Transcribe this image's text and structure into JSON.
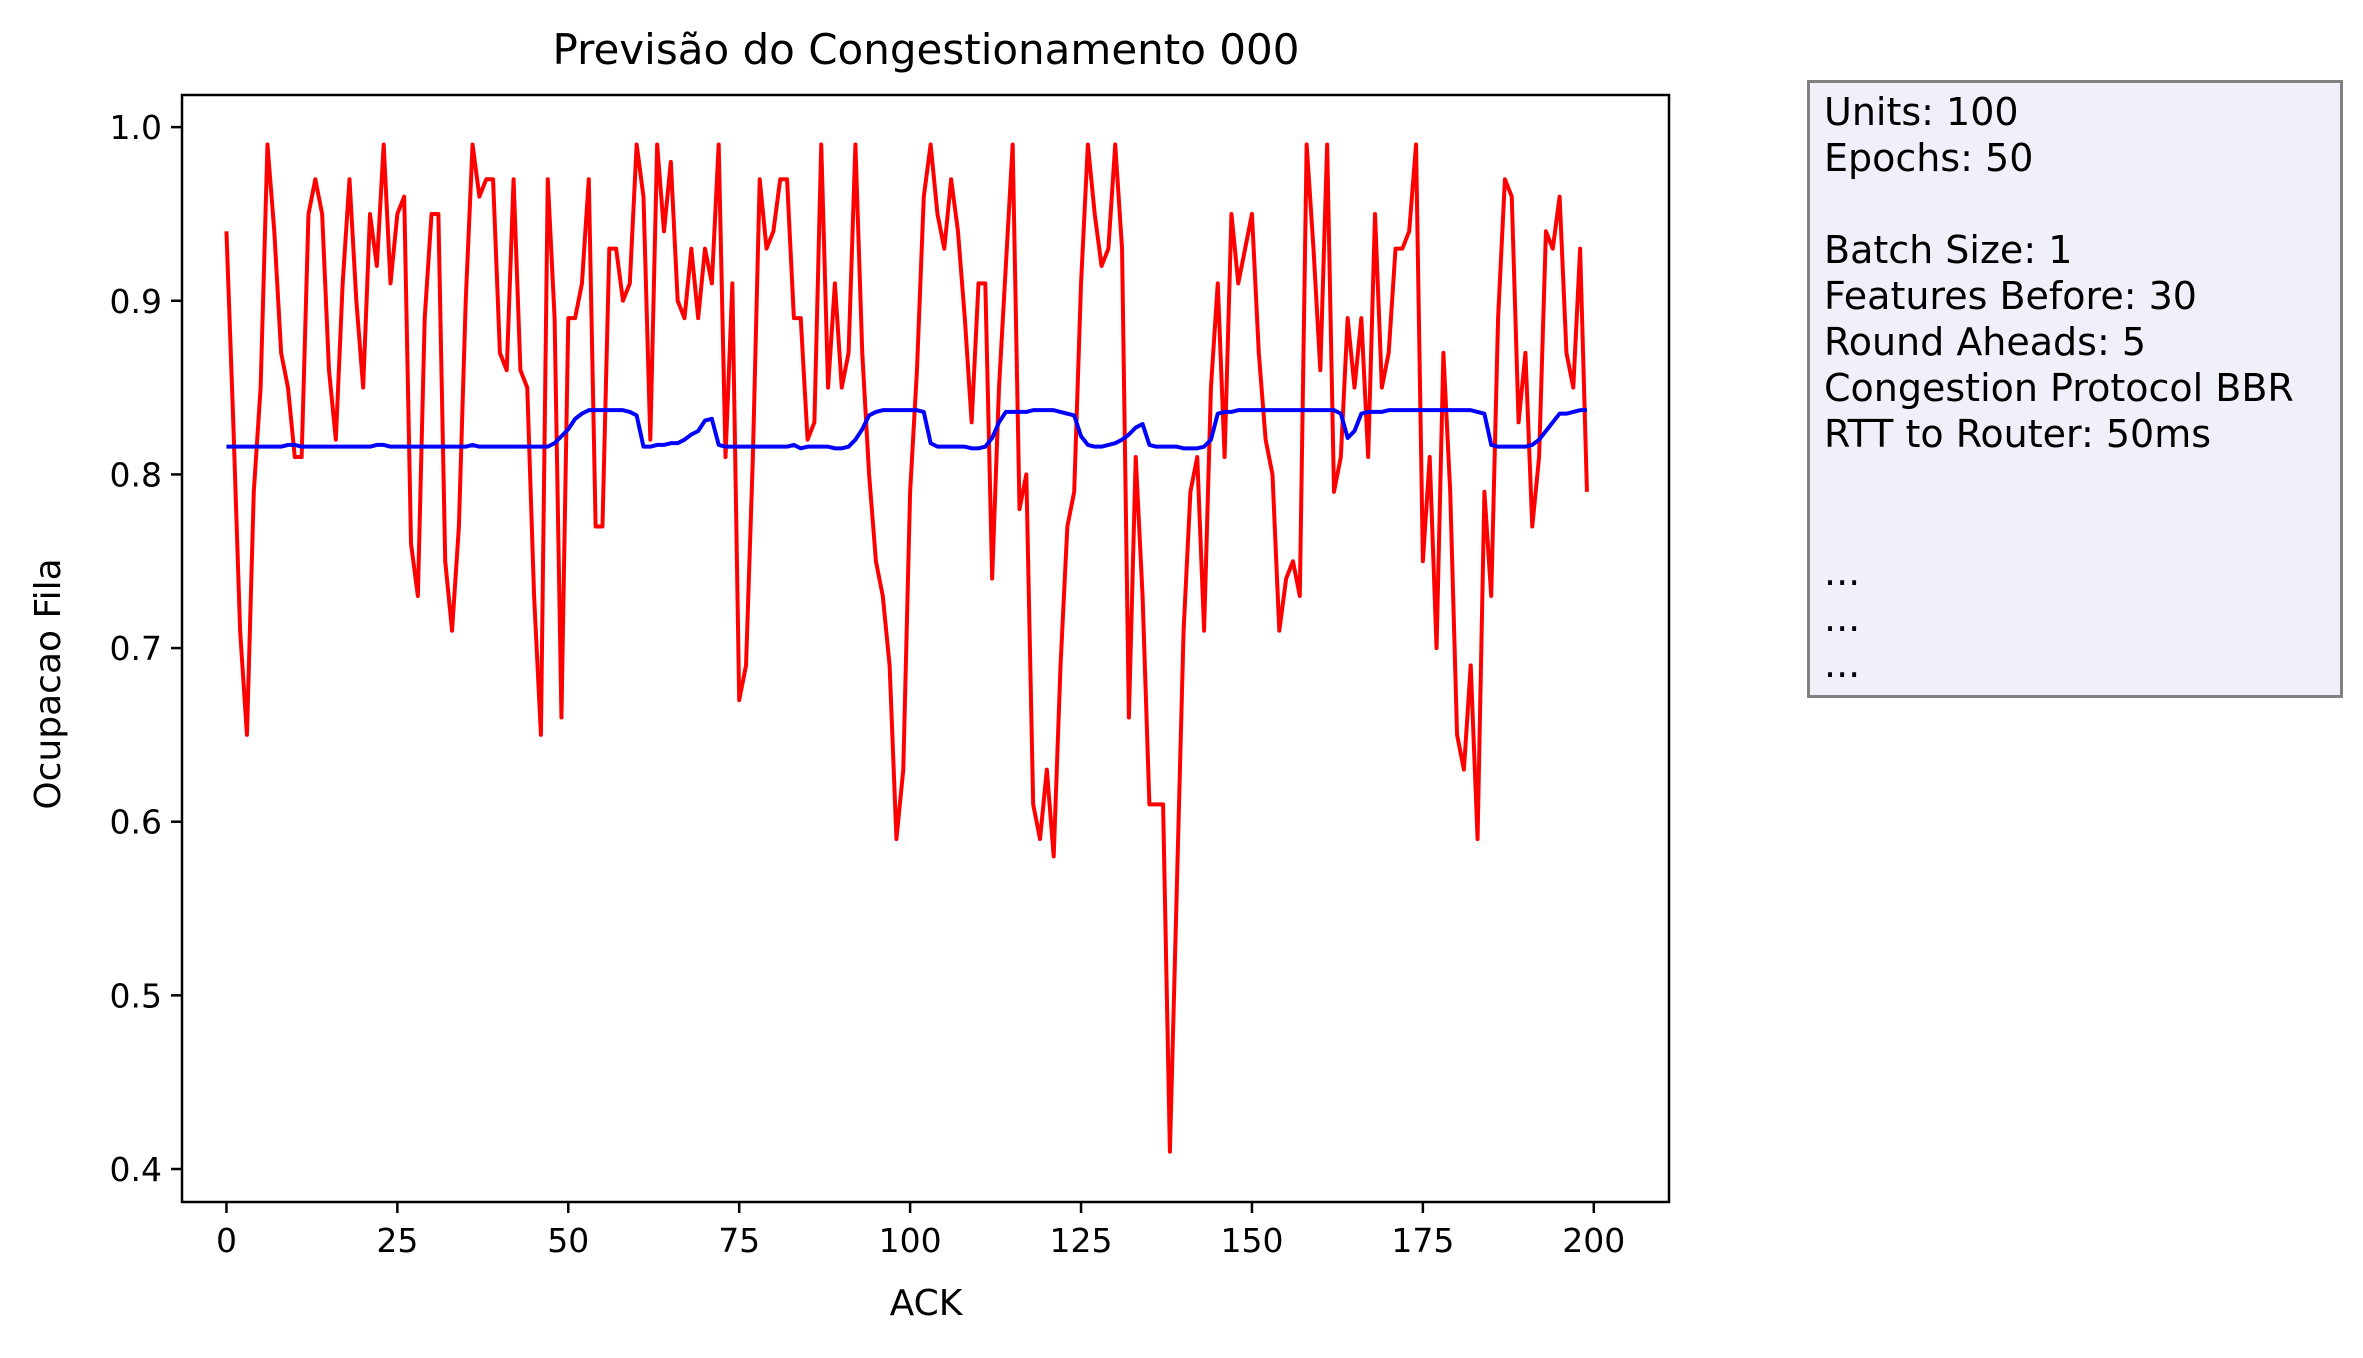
{
  "chart_data": {
    "type": "line",
    "title": "Previsão do Congestionamento 000",
    "xlabel": "ACK",
    "ylabel": "Ocupacao Fila",
    "xlim": [
      -6.5,
      211
    ],
    "ylim": [
      0.381,
      1.0185
    ],
    "xticks": [
      0,
      25,
      50,
      75,
      100,
      125,
      150,
      175,
      200
    ],
    "yticks": [
      0.4,
      0.5,
      0.6,
      0.7,
      0.8,
      0.9,
      1.0
    ],
    "grid": false,
    "series": [
      {
        "color": "#ff0000",
        "x_start": 0,
        "values": [
          0.94,
          0.83,
          0.71,
          0.65,
          0.79,
          0.85,
          0.99,
          0.94,
          0.87,
          0.85,
          0.81,
          0.81,
          0.95,
          0.97,
          0.95,
          0.86,
          0.82,
          0.91,
          0.97,
          0.9,
          0.85,
          0.95,
          0.92,
          0.99,
          0.91,
          0.95,
          0.96,
          0.76,
          0.73,
          0.89,
          0.95,
          0.95,
          0.75,
          0.71,
          0.77,
          0.9,
          0.99,
          0.96,
          0.97,
          0.97,
          0.87,
          0.86,
          0.97,
          0.86,
          0.85,
          0.73,
          0.65,
          0.97,
          0.89,
          0.66,
          0.89,
          0.89,
          0.91,
          0.97,
          0.77,
          0.77,
          0.93,
          0.93,
          0.9,
          0.91,
          0.99,
          0.96,
          0.82,
          0.99,
          0.94,
          0.98,
          0.9,
          0.89,
          0.93,
          0.89,
          0.93,
          0.91,
          0.99,
          0.81,
          0.91,
          0.67,
          0.69,
          0.81,
          0.97,
          0.93,
          0.94,
          0.97,
          0.97,
          0.89,
          0.89,
          0.82,
          0.83,
          0.99,
          0.85,
          0.91,
          0.85,
          0.87,
          0.99,
          0.87,
          0.8,
          0.75,
          0.73,
          0.69,
          0.59,
          0.63,
          0.79,
          0.86,
          0.96,
          0.99,
          0.95,
          0.93,
          0.97,
          0.94,
          0.89,
          0.83,
          0.91,
          0.91,
          0.74,
          0.85,
          0.92,
          0.99,
          0.78,
          0.8,
          0.61,
          0.59,
          0.63,
          0.58,
          0.69,
          0.77,
          0.79,
          0.91,
          0.99,
          0.95,
          0.92,
          0.93,
          0.99,
          0.93,
          0.66,
          0.81,
          0.73,
          0.61,
          0.61,
          0.61,
          0.41,
          0.56,
          0.71,
          0.79,
          0.81,
          0.71,
          0.85,
          0.91,
          0.81,
          0.95,
          0.91,
          0.93,
          0.95,
          0.87,
          0.82,
          0.8,
          0.71,
          0.74,
          0.75,
          0.73,
          0.99,
          0.93,
          0.86,
          0.99,
          0.79,
          0.81,
          0.89,
          0.85,
          0.89,
          0.81,
          0.95,
          0.85,
          0.87,
          0.93,
          0.93,
          0.94,
          0.99,
          0.75,
          0.81,
          0.7,
          0.87,
          0.79,
          0.65,
          0.63,
          0.69,
          0.59,
          0.79,
          0.73,
          0.89,
          0.97,
          0.96,
          0.83,
          0.87,
          0.77,
          0.81,
          0.94,
          0.93,
          0.96,
          0.87,
          0.85,
          0.93,
          0.79
        ]
      },
      {
        "color": "#0000ff",
        "x_start": 0,
        "values": [
          0.816,
          0.816,
          0.816,
          0.816,
          0.816,
          0.816,
          0.816,
          0.816,
          0.816,
          0.817,
          0.817,
          0.816,
          0.816,
          0.816,
          0.816,
          0.816,
          0.816,
          0.816,
          0.816,
          0.816,
          0.816,
          0.816,
          0.817,
          0.817,
          0.816,
          0.816,
          0.816,
          0.816,
          0.816,
          0.816,
          0.816,
          0.816,
          0.816,
          0.816,
          0.816,
          0.816,
          0.817,
          0.816,
          0.816,
          0.816,
          0.816,
          0.816,
          0.816,
          0.816,
          0.816,
          0.816,
          0.816,
          0.816,
          0.818,
          0.822,
          0.826,
          0.832,
          0.835,
          0.837,
          0.837,
          0.837,
          0.837,
          0.837,
          0.837,
          0.836,
          0.834,
          0.816,
          0.816,
          0.817,
          0.817,
          0.818,
          0.818,
          0.82,
          0.823,
          0.825,
          0.831,
          0.832,
          0.817,
          0.816,
          0.816,
          0.816,
          0.816,
          0.816,
          0.816,
          0.816,
          0.816,
          0.816,
          0.816,
          0.817,
          0.815,
          0.816,
          0.816,
          0.816,
          0.816,
          0.815,
          0.815,
          0.816,
          0.82,
          0.826,
          0.834,
          0.836,
          0.837,
          0.837,
          0.837,
          0.837,
          0.837,
          0.837,
          0.836,
          0.818,
          0.816,
          0.816,
          0.816,
          0.816,
          0.816,
          0.815,
          0.815,
          0.816,
          0.821,
          0.83,
          0.836,
          0.836,
          0.836,
          0.836,
          0.837,
          0.837,
          0.837,
          0.837,
          0.836,
          0.835,
          0.834,
          0.822,
          0.817,
          0.816,
          0.816,
          0.817,
          0.818,
          0.82,
          0.823,
          0.827,
          0.829,
          0.817,
          0.816,
          0.816,
          0.816,
          0.816,
          0.815,
          0.815,
          0.815,
          0.816,
          0.82,
          0.835,
          0.836,
          0.836,
          0.837,
          0.837,
          0.837,
          0.837,
          0.837,
          0.837,
          0.837,
          0.837,
          0.837,
          0.837,
          0.837,
          0.837,
          0.837,
          0.837,
          0.837,
          0.835,
          0.821,
          0.825,
          0.835,
          0.836,
          0.836,
          0.836,
          0.837,
          0.837,
          0.837,
          0.837,
          0.837,
          0.837,
          0.837,
          0.837,
          0.837,
          0.837,
          0.837,
          0.837,
          0.837,
          0.836,
          0.835,
          0.817,
          0.816,
          0.816,
          0.816,
          0.816,
          0.816,
          0.817,
          0.82,
          0.825,
          0.83,
          0.835,
          0.835,
          0.836,
          0.837,
          0.837
        ]
      }
    ]
  },
  "info_box": {
    "lines": [
      "Units: 100",
      "Epochs: 50",
      "",
      "Batch Size: 1",
      "Features Before: 30",
      "Round Aheads: 5",
      "Congestion Protocol BBR",
      "RTT to Router: 50ms",
      "",
      "",
      "...",
      "...",
      "..."
    ]
  }
}
